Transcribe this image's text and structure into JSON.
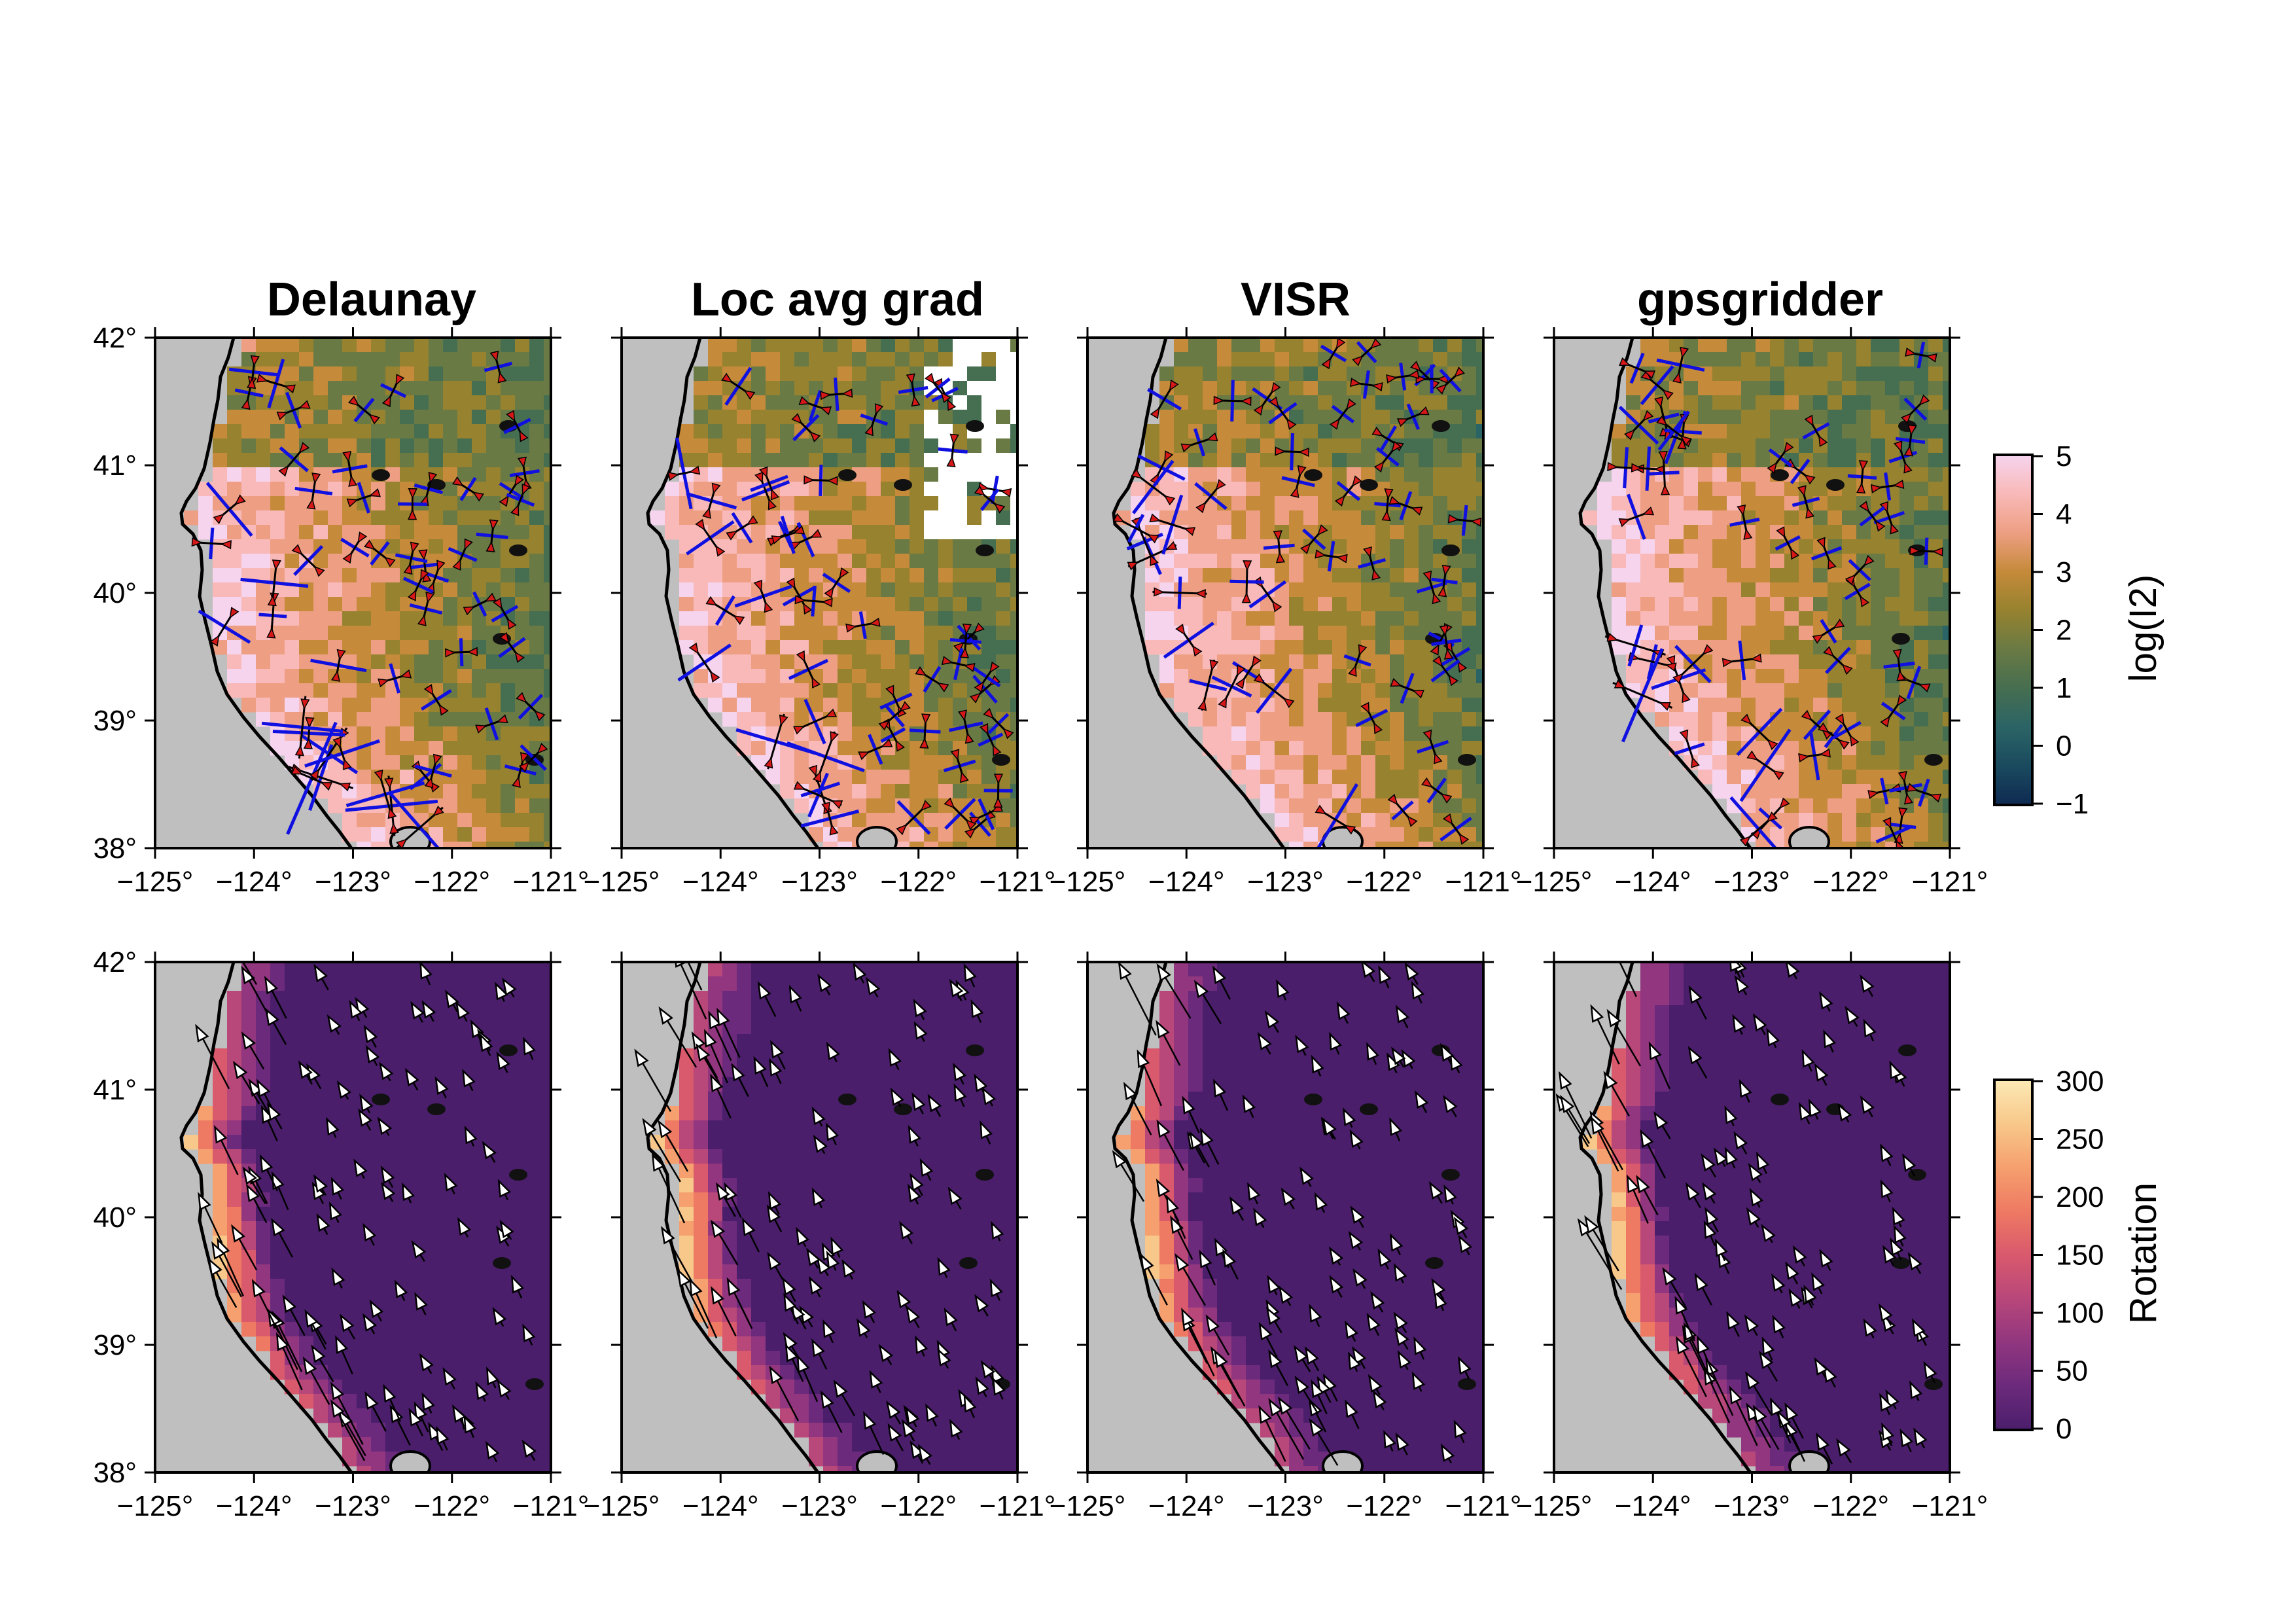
{
  "figure": {
    "panel_titles": [
      "Delaunay",
      "Loc avg grad",
      "VISR",
      "gpsgridder"
    ],
    "rows": [
      "log(I2)",
      "Rotation"
    ],
    "lon_ticks": [
      "−125°",
      "−124°",
      "−123°",
      "−122°",
      "−121°"
    ],
    "lat_ticks": [
      "42°",
      "41°",
      "40°",
      "39°",
      "38°"
    ],
    "lon_range": [
      -125,
      -121
    ],
    "lat_range": [
      38,
      42
    ]
  },
  "colorbars": {
    "top": {
      "label": "log(I2)",
      "ticks": [
        "5",
        "4",
        "3",
        "2",
        "1",
        "0",
        "−1"
      ],
      "range": [
        -1,
        5
      ],
      "colors": [
        "#0e2a52",
        "#1a4a5e",
        "#2b6466",
        "#466e50",
        "#6a7a44",
        "#96822f",
        "#c58a3a",
        "#ee9f83",
        "#f8b9b8",
        "#f6d4ee"
      ]
    },
    "bottom": {
      "label": "Rotation",
      "ticks": [
        "300",
        "250",
        "200",
        "150",
        "100",
        "50",
        "0"
      ],
      "range": [
        0,
        300
      ],
      "colors": [
        "#4a1e6b",
        "#6c2a7c",
        "#91367f",
        "#b8477a",
        "#d9596d",
        "#ee7a63",
        "#f5a06e",
        "#f8c88a",
        "#fbe9b5"
      ]
    }
  },
  "map_colors": {
    "land_gray": "#bfbfbf",
    "strain_extension_arrow": "#1010e0",
    "strain_compression_arrow": "#d61818",
    "velocity_arrow": "#ffffff",
    "nodata": "#ffffff"
  }
}
